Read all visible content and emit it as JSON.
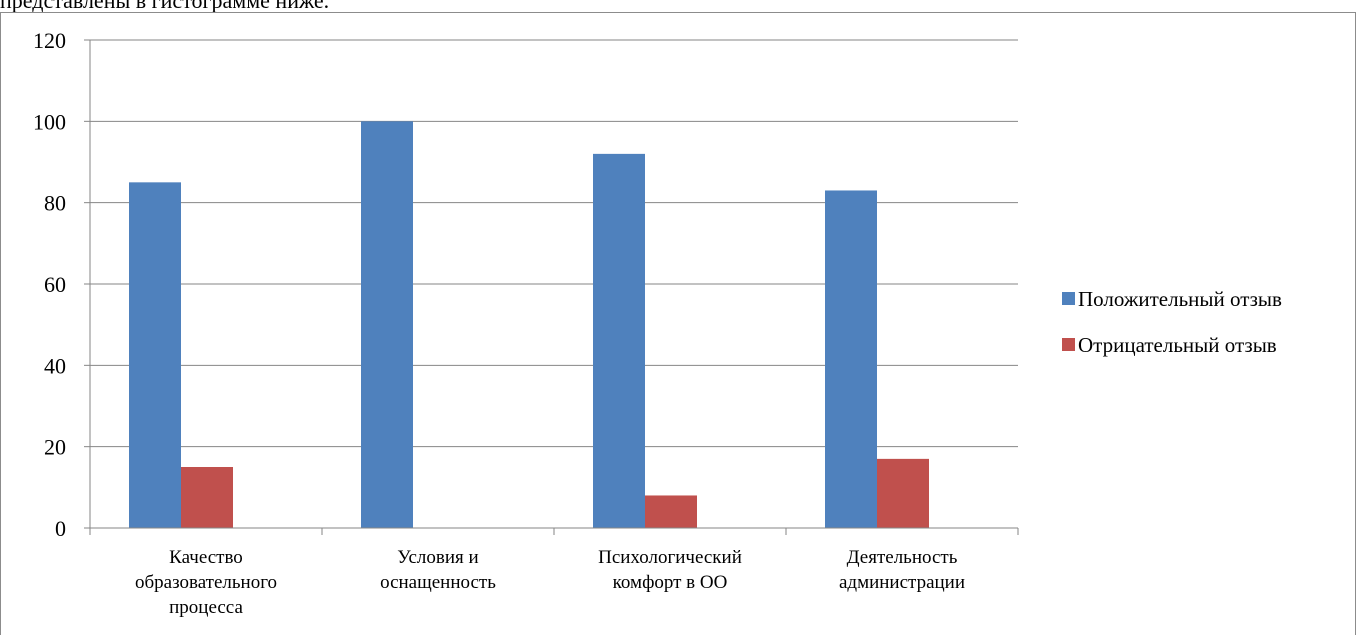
{
  "page": {
    "top_text": "представлены в гистограмме ниже."
  },
  "chart_data": {
    "type": "bar",
    "title": "",
    "xlabel": "",
    "ylabel": "",
    "ylim": [
      0,
      120
    ],
    "yticks": [
      0,
      20,
      40,
      60,
      80,
      100,
      120
    ],
    "grid": true,
    "legend_position": "right",
    "categories": [
      [
        "Качество",
        "образовательного",
        "процесса"
      ],
      [
        "Условия и",
        "оснащенность"
      ],
      [
        "Психологический",
        "комфорт в ОО"
      ],
      [
        "Деятельность",
        "администрации"
      ]
    ],
    "series": [
      {
        "name": "Положительный отзыв",
        "color": "#4f81bd",
        "values": [
          85,
          100,
          92,
          83
        ]
      },
      {
        "name": "Отрицательный отзыв",
        "color": "#c0504d",
        "values": [
          15,
          0,
          8,
          17
        ]
      }
    ]
  }
}
